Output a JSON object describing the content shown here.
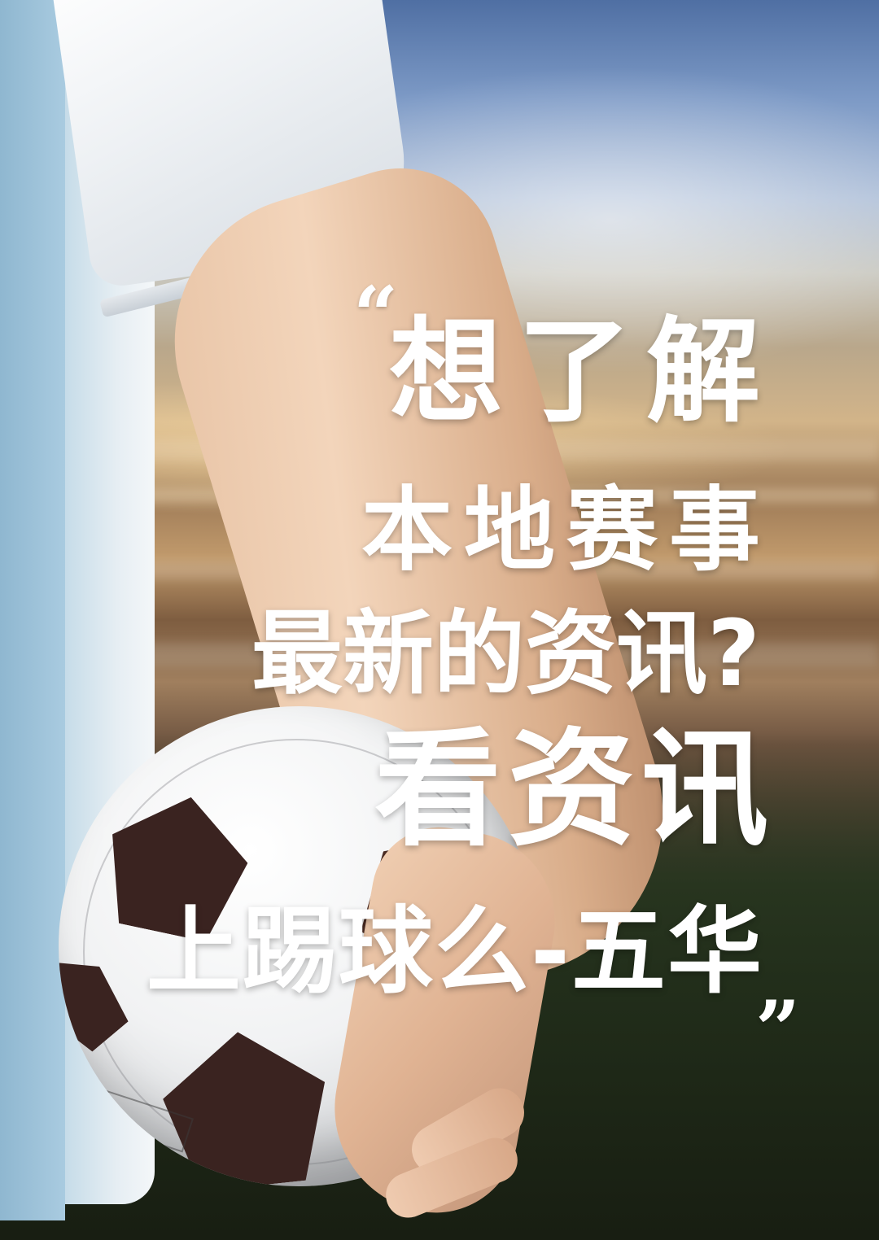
{
  "poster": {
    "quote_open": "“",
    "quote_close": "”",
    "headline": {
      "line1": "想了解",
      "line2": "本地赛事",
      "line3": "最新的资讯?",
      "line4": "看资讯",
      "line5": "上踢球么-五华"
    }
  },
  "colors": {
    "text": "#ffffff",
    "sky": "#7d9ac6",
    "pitch": "#2a2f22",
    "ball_panel": "#3a2320"
  }
}
